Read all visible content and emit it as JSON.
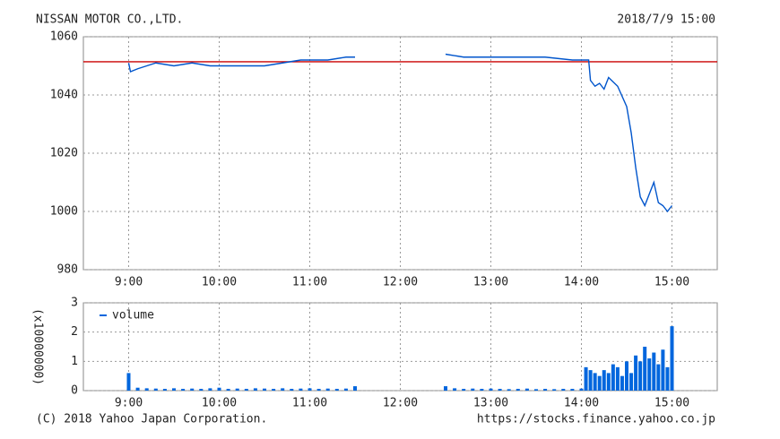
{
  "header": {
    "title": "NISSAN MOTOR CO.,LTD.",
    "timestamp": "2018/7/9 15:00"
  },
  "footer": {
    "copyright": "(C) 2018 Yahoo Japan Corporation.",
    "source": "https://stocks.finance.yahoo.co.jp"
  },
  "chart_data": [
    {
      "type": "line",
      "grid": true,
      "xlim": [
        8.5,
        15.5
      ],
      "ylim": [
        980,
        1060
      ],
      "xticks": [
        {
          "value": 9,
          "label": "9:00"
        },
        {
          "value": 10,
          "label": "10:00"
        },
        {
          "value": 11,
          "label": "11:00"
        },
        {
          "value": 12,
          "label": "12:00"
        },
        {
          "value": 13,
          "label": "13:00"
        },
        {
          "value": 14,
          "label": "14:00"
        },
        {
          "value": 15,
          "label": "15:00"
        }
      ],
      "yticks": [
        980,
        1000,
        1020,
        1040,
        1060
      ],
      "reference_line": {
        "value": 1051.4,
        "color": "#cc0000"
      },
      "series": [
        {
          "color": "#0055cc",
          "x": [
            9.0,
            9.02,
            9.1,
            9.2,
            9.3,
            9.5,
            9.7,
            9.9,
            10.0,
            10.2,
            10.4,
            10.5,
            10.7,
            10.9,
            11.0,
            11.2,
            11.4,
            11.5,
            null,
            12.5,
            12.7,
            13.0,
            13.3,
            13.6,
            13.9,
            14.08,
            14.1,
            14.15,
            14.2,
            14.25,
            14.3,
            14.4,
            14.5,
            14.55,
            14.6,
            14.65,
            14.7,
            14.75,
            14.8,
            14.85,
            14.9,
            14.95,
            15.0
          ],
          "values": [
            1051,
            1048,
            1049,
            1050,
            1051,
            1050,
            1051,
            1050,
            1050,
            1050,
            1050,
            1050,
            1051,
            1052,
            1052,
            1052,
            1053,
            1053,
            null,
            1054,
            1053,
            1053,
            1053,
            1053,
            1052,
            1052,
            1045,
            1043,
            1044,
            1042,
            1046,
            1043,
            1036,
            1027,
            1015,
            1005,
            1002,
            1006,
            1010,
            1003,
            1002,
            1000,
            1002
          ]
        }
      ]
    },
    {
      "type": "bar",
      "grid": true,
      "legend": "upper left",
      "ylabel": "(x10000000)",
      "xlim": [
        8.5,
        15.5
      ],
      "ylim": [
        0,
        3
      ],
      "xticks": [
        {
          "value": 9,
          "label": "9:00"
        },
        {
          "value": 10,
          "label": "10:00"
        },
        {
          "value": 11,
          "label": "11:00"
        },
        {
          "value": 12,
          "label": "12:00"
        },
        {
          "value": 13,
          "label": "13:00"
        },
        {
          "value": 14,
          "label": "14:00"
        },
        {
          "value": 15,
          "label": "15:00"
        }
      ],
      "yticks": [
        0,
        1,
        2,
        3
      ],
      "series": [
        {
          "name": "volume",
          "color": "#0066dd",
          "x": [
            9.0,
            9.1,
            9.2,
            9.3,
            9.4,
            9.5,
            9.6,
            9.7,
            9.8,
            9.9,
            10.0,
            10.1,
            10.2,
            10.3,
            10.4,
            10.5,
            10.6,
            10.7,
            10.8,
            10.9,
            11.0,
            11.1,
            11.2,
            11.3,
            11.4,
            11.5,
            12.5,
            12.6,
            12.7,
            12.8,
            12.9,
            13.0,
            13.1,
            13.2,
            13.3,
            13.4,
            13.5,
            13.6,
            13.7,
            13.8,
            13.9,
            14.0,
            14.05,
            14.1,
            14.15,
            14.2,
            14.25,
            14.3,
            14.35,
            14.4,
            14.45,
            14.5,
            14.55,
            14.6,
            14.65,
            14.7,
            14.75,
            14.8,
            14.85,
            14.9,
            14.95,
            15.0
          ],
          "values": [
            0.6,
            0.1,
            0.08,
            0.07,
            0.06,
            0.08,
            0.06,
            0.07,
            0.06,
            0.08,
            0.1,
            0.06,
            0.07,
            0.06,
            0.08,
            0.07,
            0.06,
            0.08,
            0.06,
            0.07,
            0.08,
            0.06,
            0.07,
            0.06,
            0.07,
            0.15,
            0.15,
            0.08,
            0.06,
            0.07,
            0.06,
            0.07,
            0.06,
            0.05,
            0.06,
            0.07,
            0.05,
            0.06,
            0.05,
            0.06,
            0.06,
            0.07,
            0.8,
            0.7,
            0.6,
            0.5,
            0.7,
            0.6,
            0.9,
            0.8,
            0.5,
            1.0,
            0.6,
            1.2,
            1.0,
            1.5,
            1.1,
            1.3,
            0.9,
            1.4,
            0.8,
            2.2
          ]
        }
      ]
    }
  ]
}
